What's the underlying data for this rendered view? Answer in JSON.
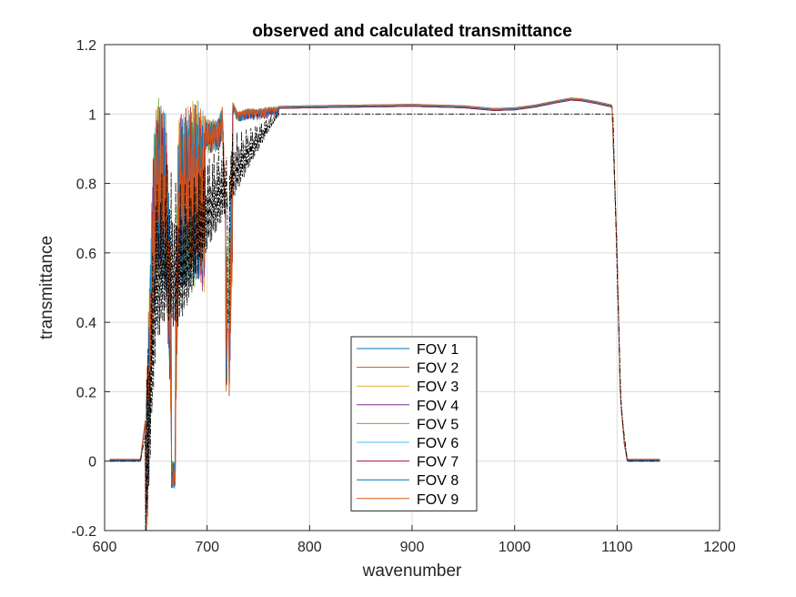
{
  "chart_data": {
    "type": "line",
    "title": "observed and calculated transmittance",
    "xlabel": "wavenumber",
    "ylabel": "transmittance",
    "xlim": [
      600,
      1200
    ],
    "ylim": [
      -0.2,
      1.2
    ],
    "xticks": [
      "600",
      "700",
      "800",
      "900",
      "1000",
      "1100",
      "1200"
    ],
    "yticks": [
      "-0.2",
      "0",
      "0.2",
      "0.4",
      "0.6",
      "0.8",
      "1",
      "1.2"
    ],
    "grid": true,
    "legend_position": "lower-center",
    "series": [
      {
        "name": "FOV 1",
        "color": "#0072BD"
      },
      {
        "name": "FOV 2",
        "color": "#D95319"
      },
      {
        "name": "FOV 3",
        "color": "#EDB120"
      },
      {
        "name": "FOV 4",
        "color": "#7E2F8E"
      },
      {
        "name": "FOV 5",
        "color": "#77AC30"
      },
      {
        "name": "FOV 6",
        "color": "#4DBEEE"
      },
      {
        "name": "FOV 7",
        "color": "#A2142F"
      },
      {
        "name": "FOV 8",
        "color": "#0072BD"
      },
      {
        "name": "FOV 9",
        "color": "#D95319"
      }
    ],
    "observed_envelope": {
      "x": [
        605,
        635,
        640,
        643,
        648,
        652,
        660,
        668,
        672,
        680,
        690,
        700,
        710,
        715,
        720,
        725,
        730,
        740,
        750,
        760,
        770,
        800,
        850,
        900,
        950,
        980,
        1000,
        1020,
        1040,
        1055,
        1065,
        1080,
        1095,
        1100,
        1103,
        1107,
        1110,
        1120,
        1142
      ],
      "y": [
        0.0,
        0.0,
        0.12,
        0.45,
        0.95,
        1.05,
        1.0,
        0.3,
        1.0,
        1.02,
        1.05,
        0.98,
        0.98,
        1.02,
        0.55,
        1.03,
        1.0,
        1.01,
        1.01,
        1.015,
        1.016,
        1.018,
        1.02,
        1.022,
        1.018,
        1.01,
        1.012,
        1.02,
        1.032,
        1.04,
        1.038,
        1.03,
        1.02,
        0.6,
        0.2,
        0.05,
        0.0,
        0.0,
        0.0
      ]
    },
    "calculated": {
      "x": [
        605,
        635,
        640,
        645,
        650,
        660,
        670,
        680,
        700,
        720,
        740,
        760,
        770,
        800,
        900,
        1000,
        1090,
        1096,
        1100,
        1104,
        1110,
        1142
      ],
      "y": [
        0.0,
        0.0,
        0.08,
        0.45,
        0.8,
        0.85,
        0.75,
        0.78,
        0.88,
        0.92,
        0.96,
        0.99,
        1.0,
        1.0,
        1.0,
        1.0,
        1.0,
        1.0,
        0.55,
        0.15,
        0.0,
        0.0
      ]
    }
  }
}
